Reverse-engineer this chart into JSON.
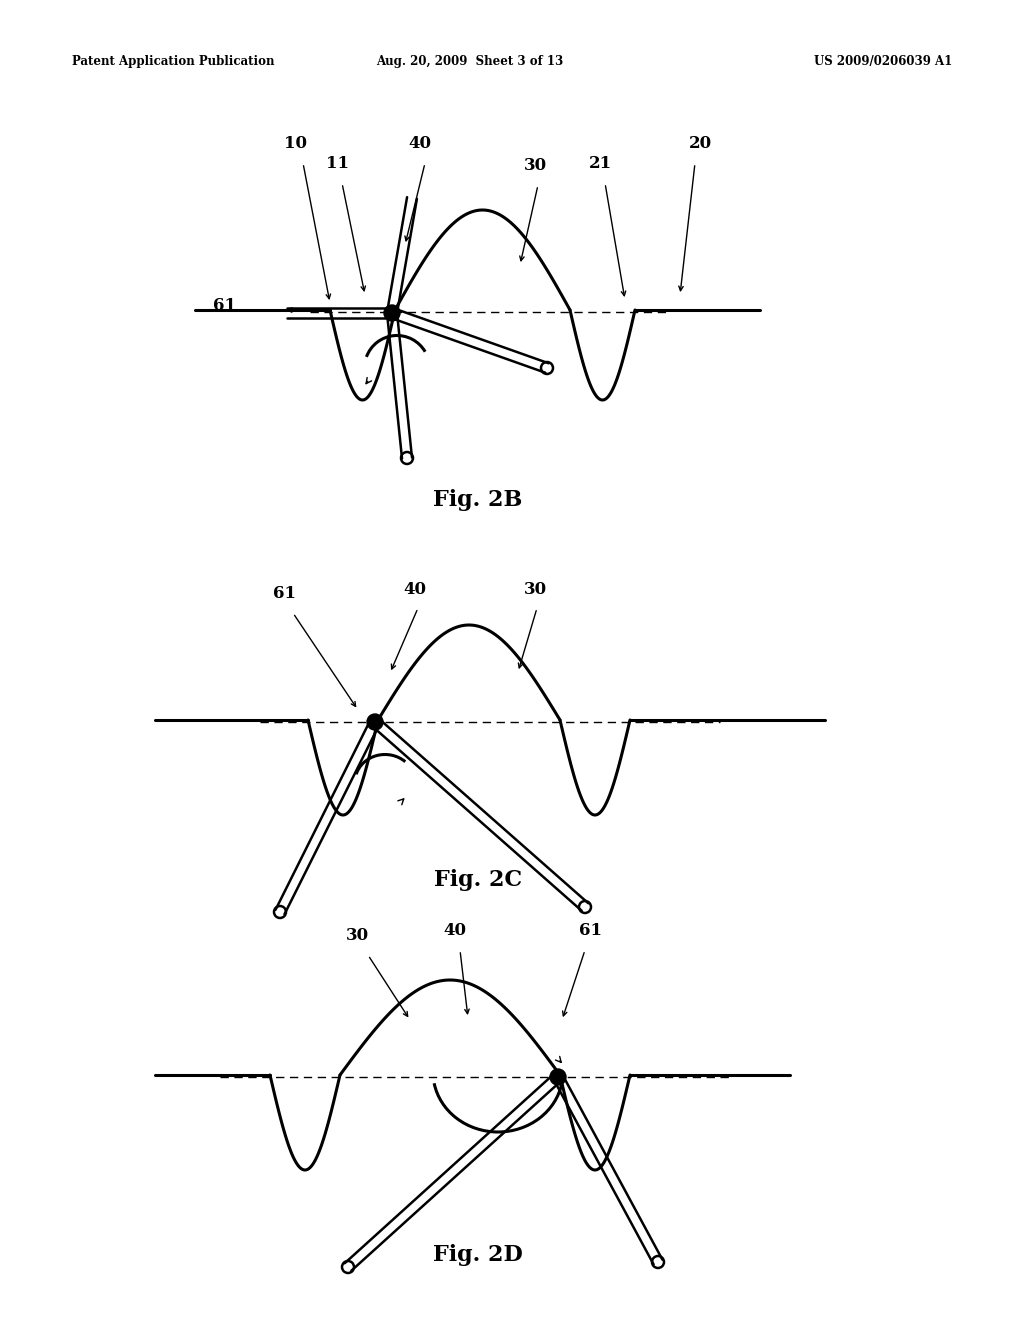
{
  "title_left": "Patent Application Publication",
  "title_center": "Aug. 20, 2009  Sheet 3 of 13",
  "title_right": "US 2009/0206039 A1",
  "fig2b_label": "Fig. 2B",
  "fig2c_label": "Fig. 2C",
  "fig2d_label": "Fig. 2D",
  "bg_color": "#ffffff",
  "lw_main": 2.2,
  "lw_rod": 1.8,
  "lw_dash": 1.0,
  "tube_sep": 0.006
}
